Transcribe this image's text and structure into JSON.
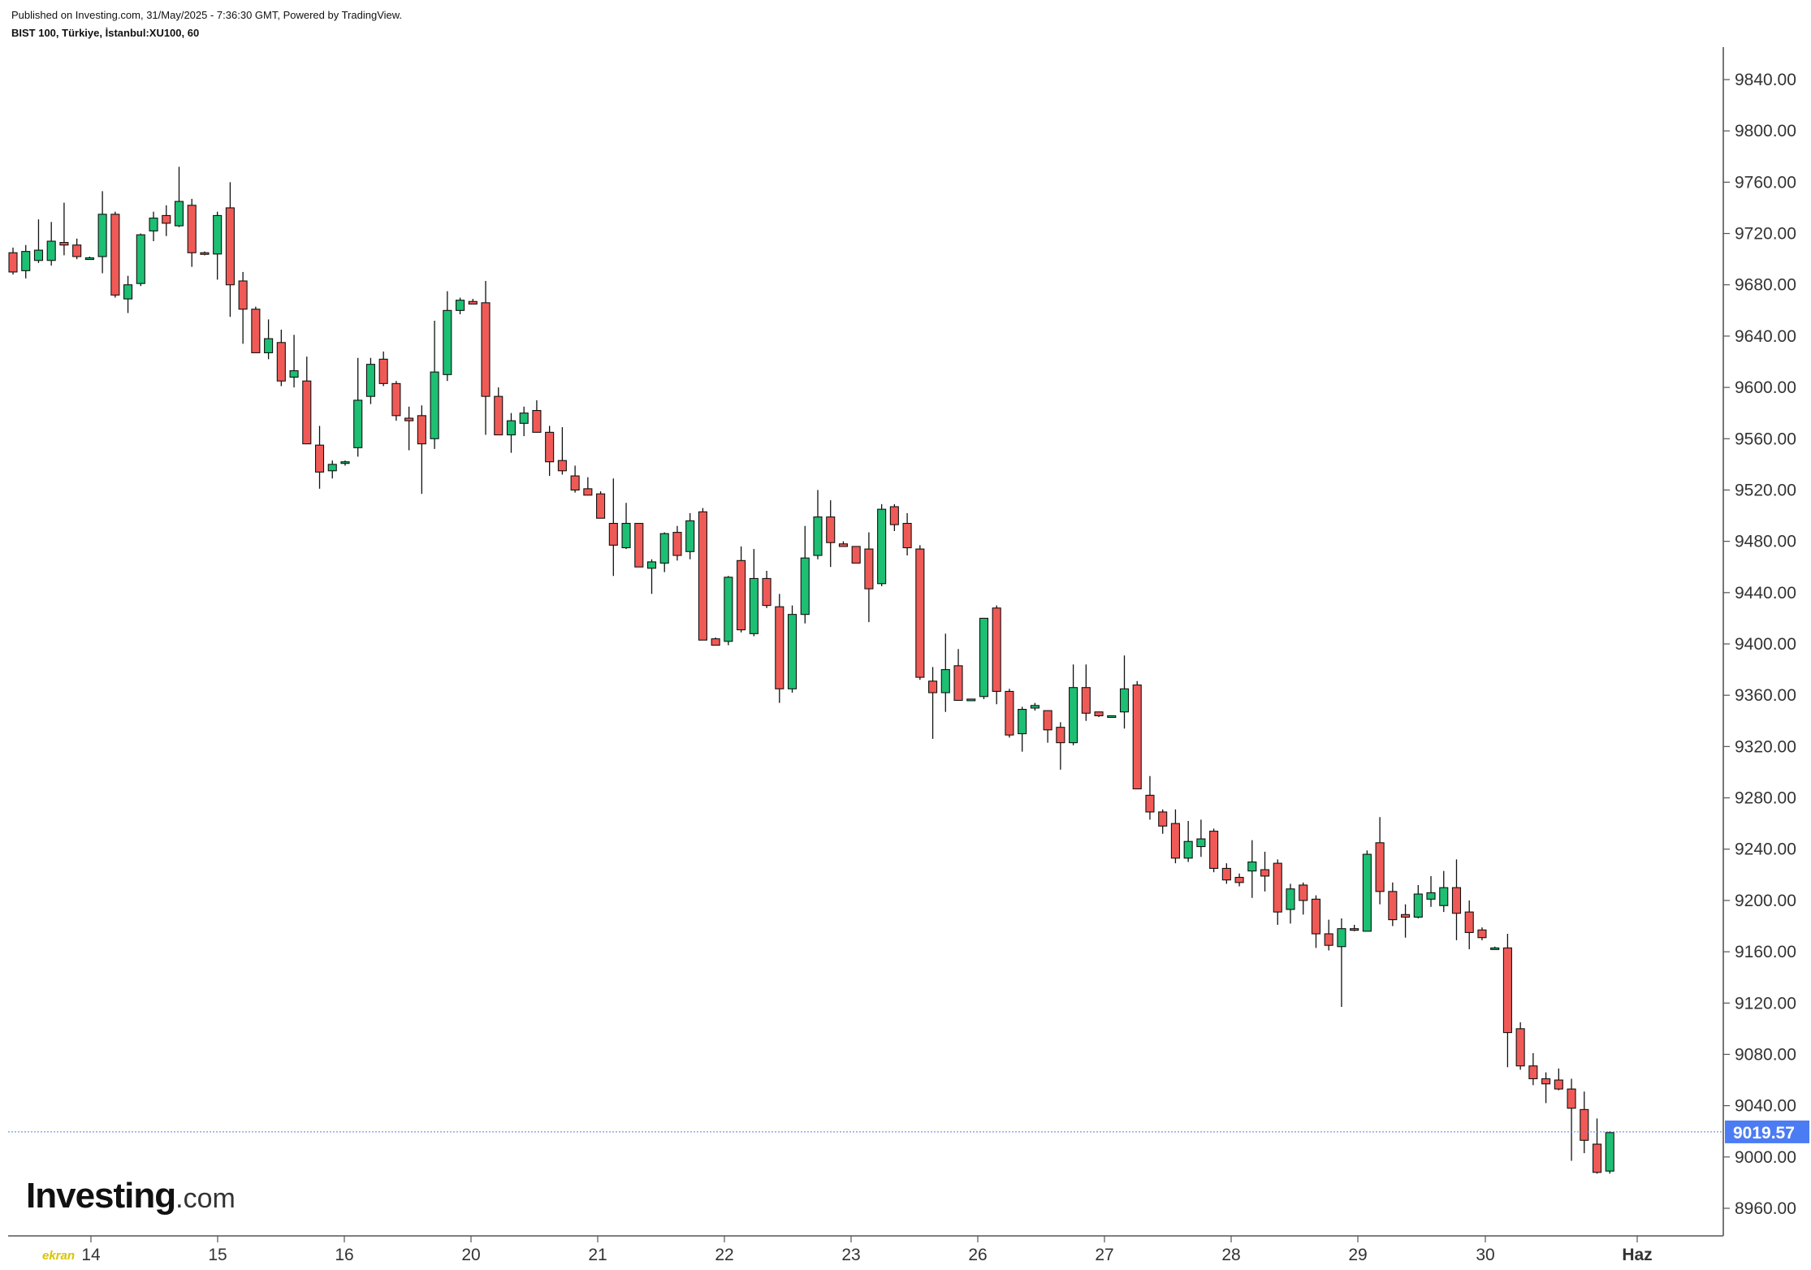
{
  "header": {
    "published": "Published on Investing.com, 31/May/2025 - 7:36:30 GMT, Powered by TradingView.",
    "symbol": "BIST 100, Türkiye, İstanbul:XU100, 60"
  },
  "logo": {
    "brand": "Investing",
    "suffix": ".com"
  },
  "watermark": "ekran",
  "colors": {
    "up": "#1dbf73",
    "down": "#f05a56",
    "price_tag": "#4c7cf3",
    "axis": "#555555"
  },
  "chart_data": {
    "type": "candlestick",
    "ylim": [
      8935,
      9870
    ],
    "y_ticks": [
      "9840.00",
      "9800.00",
      "9760.00",
      "9720.00",
      "9680.00",
      "9640.00",
      "9600.00",
      "9560.00",
      "9520.00",
      "9480.00",
      "9440.00",
      "9400.00",
      "9360.00",
      "9320.00",
      "9280.00",
      "9240.00",
      "9200.00",
      "9160.00",
      "9120.00",
      "9080.00",
      "9040.00",
      "9000.00",
      "8960.00"
    ],
    "x_ticks": [
      "14",
      "15",
      "16",
      "20",
      "21",
      "22",
      "23",
      "26",
      "27",
      "28",
      "29",
      "30",
      "Haz"
    ],
    "last_price": "9019.57",
    "candles": [
      [
        9705,
        9709,
        9688,
        9690
      ],
      [
        9691,
        9711,
        9685,
        9706
      ],
      [
        9699,
        9731,
        9697,
        9707
      ],
      [
        9699,
        9729,
        9695,
        9714
      ],
      [
        9713,
        9744,
        9703,
        9711
      ],
      [
        9711,
        9716,
        9700,
        9702
      ],
      [
        9701,
        9702,
        9701,
        9701
      ],
      [
        9702,
        9753,
        9689,
        9735
      ],
      [
        9735,
        9737,
        9670,
        9672
      ],
      [
        9669,
        9687,
        9658,
        9680
      ],
      [
        9681,
        9720,
        9679,
        9719
      ],
      [
        9722,
        9737,
        9714,
        9732
      ],
      [
        9734,
        9742,
        9718,
        9728
      ],
      [
        9726,
        9772,
        9725,
        9745
      ],
      [
        9742,
        9747,
        9694,
        9705
      ],
      [
        9705,
        9706,
        9703,
        9704
      ],
      [
        9704,
        9737,
        9684,
        9734
      ],
      [
        9740,
        9760,
        9655,
        9680
      ],
      [
        9683,
        9690,
        9634,
        9661
      ],
      [
        9661,
        9663,
        9627,
        9627
      ],
      [
        9627,
        9653,
        9622,
        9638
      ],
      [
        9635,
        9645,
        9601,
        9605
      ],
      [
        9608,
        9641,
        9600,
        9613
      ],
      [
        9605,
        9624,
        9556,
        9556
      ],
      [
        9555,
        9570,
        9521,
        9534
      ],
      [
        9535,
        9543,
        9529,
        9540
      ],
      [
        9541,
        9543,
        9539,
        9542
      ],
      [
        9553,
        9623,
        9546,
        9590
      ],
      [
        9593,
        9623,
        9587,
        9618
      ],
      [
        9622,
        9628,
        9601,
        9603
      ],
      [
        9603,
        9605,
        9574,
        9578
      ],
      [
        9576,
        9585,
        9551,
        9574
      ],
      [
        9578,
        9586,
        9517,
        9556
      ],
      [
        9560,
        9652,
        9552,
        9612
      ],
      [
        9610,
        9675,
        9605,
        9660
      ],
      [
        9660,
        9670,
        9657,
        9668
      ],
      [
        9667,
        9669,
        9665,
        9665
      ],
      [
        9666,
        9683,
        9563,
        9593
      ],
      [
        9593,
        9600,
        9563,
        9563
      ],
      [
        9563,
        9580,
        9549,
        9574
      ],
      [
        9572,
        9585,
        9562,
        9580
      ],
      [
        9582,
        9590,
        9565,
        9565
      ],
      [
        9565,
        9570,
        9531,
        9542
      ],
      [
        9543,
        9569,
        9532,
        9535
      ],
      [
        9531,
        9539,
        9518,
        9520
      ],
      [
        9521,
        9530,
        9516,
        9516
      ],
      [
        9517,
        9519,
        9499,
        9498
      ],
      [
        9494,
        9529,
        9453,
        9477
      ],
      [
        9475,
        9510,
        9474,
        9494
      ],
      [
        9494,
        9493,
        9461,
        9460
      ],
      [
        9459,
        9466,
        9439,
        9464
      ],
      [
        9463,
        9487,
        9456,
        9486
      ],
      [
        9487,
        9492,
        9465,
        9469
      ],
      [
        9472,
        9502,
        9466,
        9496
      ],
      [
        9503,
        9506,
        9403,
        9403
      ],
      [
        9404,
        9405,
        9399,
        9399
      ],
      [
        9402,
        9453,
        9399,
        9452
      ],
      [
        9465,
        9476,
        9409,
        9411
      ],
      [
        9408,
        9474,
        9406,
        9451
      ],
      [
        9451,
        9457,
        9428,
        9430
      ],
      [
        9429,
        9439,
        9354,
        9365
      ],
      [
        9365,
        9430,
        9362,
        9423
      ],
      [
        9423,
        9492,
        9416,
        9467
      ],
      [
        9469,
        9520,
        9466,
        9499
      ],
      [
        9499,
        9512,
        9460,
        9479
      ],
      [
        9478,
        9480,
        9476,
        9476
      ],
      [
        9476,
        9474,
        9464,
        9463
      ],
      [
        9474,
        9487,
        9417,
        9443
      ],
      [
        9447,
        9509,
        9445,
        9505
      ],
      [
        9507,
        9509,
        9488,
        9493
      ],
      [
        9494,
        9502,
        9469,
        9475
      ],
      [
        9474,
        9477,
        9372,
        9374
      ],
      [
        9371,
        9382,
        9326,
        9362
      ],
      [
        9362,
        9408,
        9347,
        9380
      ],
      [
        9383,
        9396,
        9357,
        9356
      ],
      [
        9357,
        9357,
        9357,
        9357
      ],
      [
        9359,
        9420,
        9357,
        9420
      ],
      [
        9428,
        9430,
        9353,
        9363
      ],
      [
        9363,
        9365,
        9327,
        9329
      ],
      [
        9330,
        9351,
        9316,
        9349
      ],
      [
        9350,
        9354,
        9348,
        9352
      ],
      [
        9348,
        9348,
        9323,
        9333
      ],
      [
        9335,
        9339,
        9302,
        9323
      ],
      [
        9323,
        9384,
        9321,
        9366
      ],
      [
        9366,
        9384,
        9340,
        9346
      ],
      [
        9347,
        9346,
        9343,
        9344
      ],
      [
        9344,
        9344,
        9344,
        9344
      ],
      [
        9347,
        9391,
        9334,
        9365
      ],
      [
        9368,
        9371,
        9287,
        9287
      ],
      [
        9282,
        9297,
        9263,
        9269
      ],
      [
        9269,
        9271,
        9252,
        9258
      ],
      [
        9260,
        9271,
        9229,
        9233
      ],
      [
        9233,
        9262,
        9230,
        9246
      ],
      [
        9242,
        9263,
        9234,
        9248
      ],
      [
        9254,
        9256,
        9222,
        9225
      ],
      [
        9225,
        9229,
        9213,
        9216
      ],
      [
        9218,
        9221,
        9211,
        9214
      ],
      [
        9223,
        9247,
        9202,
        9230
      ],
      [
        9224,
        9238,
        9207,
        9219
      ],
      [
        9229,
        9232,
        9181,
        9191
      ],
      [
        9193,
        9213,
        9182,
        9209
      ],
      [
        9212,
        9214,
        9189,
        9200
      ],
      [
        9201,
        9204,
        9163,
        9174
      ],
      [
        9174,
        9185,
        9161,
        9165
      ],
      [
        9164,
        9186,
        9117,
        9178
      ],
      [
        9178,
        9181,
        9176,
        9177
      ],
      [
        9176,
        9239,
        9176,
        9236
      ],
      [
        9245,
        9265,
        9197,
        9207
      ],
      [
        9207,
        9214,
        9180,
        9185
      ],
      [
        9189,
        9197,
        9171,
        9187
      ],
      [
        9187,
        9212,
        9186,
        9205
      ],
      [
        9201,
        9219,
        9195,
        9206
      ],
      [
        9196,
        9223,
        9191,
        9210
      ],
      [
        9210,
        9232,
        9169,
        9190
      ],
      [
        9191,
        9200,
        9162,
        9175
      ],
      [
        9177,
        9179,
        9169,
        9171
      ],
      [
        9163,
        9164,
        9163,
        9163
      ],
      [
        9163,
        9174,
        9070,
        9097
      ],
      [
        9100,
        9105,
        9068,
        9071
      ],
      [
        9071,
        9081,
        9056,
        9061
      ],
      [
        9061,
        9066,
        9042,
        9057
      ],
      [
        9060,
        9069,
        9052,
        9053
      ],
      [
        9053,
        9061,
        8997,
        9038
      ],
      [
        9037,
        9051,
        9003,
        9013
      ],
      [
        9010,
        9030,
        8987,
        8988
      ],
      [
        8989,
        9020,
        8987,
        9019
      ]
    ]
  }
}
